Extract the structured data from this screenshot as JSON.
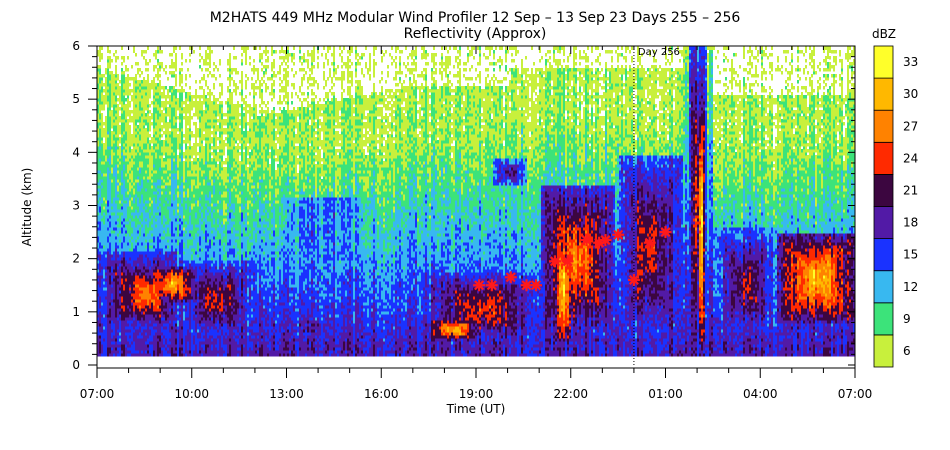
{
  "chart_data": {
    "type": "heatmap",
    "title": "M2HATS 449 MHz Modular Wind Profiler  12 Sep – 13 Sep 23 Days 255 – 256",
    "subtitle": "Reflectivity (Approx)",
    "xlabel": "Time (UT)",
    "ylabel": "Altitude (km)",
    "x_ticks": [
      "07:00",
      "10:00",
      "13:00",
      "16:00",
      "19:00",
      "22:00",
      "01:00",
      "04:00",
      "07:00"
    ],
    "x_range_hours": [
      7,
      31
    ],
    "y_ticks": [
      "0",
      "1",
      "2",
      "3",
      "4",
      "5",
      "6"
    ],
    "ylim": [
      0,
      6
    ],
    "grid": false,
    "colorbar": {
      "label": "dBZ",
      "tick_labels": [
        "6",
        "9",
        "12",
        "15",
        "18",
        "21",
        "24",
        "27",
        "30",
        "33"
      ],
      "levels": [
        6,
        9,
        12,
        15,
        18,
        21,
        24,
        27,
        30,
        33,
        36
      ],
      "colors": [
        "#c8f03c",
        "#3ce37a",
        "#38b8f0",
        "#1a32ff",
        "#521aa6",
        "#3c0640",
        "#ff2a00",
        "#ff8200",
        "#ffb800",
        "#ffff2a"
      ]
    },
    "annotations": [
      {
        "text": "Day 256",
        "x_hour": 24.0
      }
    ],
    "marker_series": {
      "color": "#ff1a1a",
      "points": [
        {
          "x_hour": 19.1,
          "y": 1.5
        },
        {
          "x_hour": 19.5,
          "y": 1.5
        },
        {
          "x_hour": 20.1,
          "y": 1.65
        },
        {
          "x_hour": 20.6,
          "y": 1.5
        },
        {
          "x_hour": 20.9,
          "y": 1.5
        },
        {
          "x_hour": 21.5,
          "y": 1.95
        },
        {
          "x_hour": 21.9,
          "y": 1.95
        },
        {
          "x_hour": 22.5,
          "y": 2.35
        },
        {
          "x_hour": 22.9,
          "y": 2.3
        },
        {
          "x_hour": 23.1,
          "y": 2.35
        },
        {
          "x_hour": 23.5,
          "y": 2.45
        },
        {
          "x_hour": 24.0,
          "y": 1.6
        },
        {
          "x_hour": 24.5,
          "y": 2.3
        },
        {
          "x_hour": 25.0,
          "y": 2.5
        }
      ]
    },
    "field_features": [
      {
        "t0": 7.0,
        "t1": 9.5,
        "z0": 0.6,
        "z1": 2.2,
        "dbz": 22
      },
      {
        "t0": 7.6,
        "t1": 9.4,
        "z0": 0.8,
        "z1": 1.9,
        "dbz": 26
      },
      {
        "t0": 9.5,
        "t1": 12.0,
        "z0": 0.5,
        "z1": 2.0,
        "dbz": 21
      },
      {
        "t0": 8.6,
        "t1": 10.2,
        "z0": 1.2,
        "z1": 1.9,
        "dbz": 27
      },
      {
        "t0": 12.0,
        "t1": 15.5,
        "z0": 0.3,
        "z1": 1.2,
        "dbz": 16
      },
      {
        "t0": 17.2,
        "t1": 21.2,
        "z0": 0.4,
        "z1": 1.8,
        "dbz": 22
      },
      {
        "t0": 17.5,
        "t1": 19.0,
        "z0": 0.5,
        "z1": 0.9,
        "dbz": 28
      },
      {
        "t0": 19.5,
        "t1": 20.6,
        "z0": 3.4,
        "z1": 3.9,
        "dbz": 18
      },
      {
        "t0": 21.0,
        "t1": 23.4,
        "z0": 0.6,
        "z1": 3.4,
        "dbz": 25
      },
      {
        "t0": 21.5,
        "t1": 22.0,
        "z0": 0.5,
        "z1": 2.4,
        "dbz": 30
      },
      {
        "t0": 23.5,
        "t1": 25.5,
        "z0": 0.4,
        "z1": 4.0,
        "dbz": 22
      },
      {
        "t0": 25.7,
        "t1": 26.3,
        "z0": 0.2,
        "z1": 6.0,
        "dbz": 22
      },
      {
        "t0": 26.0,
        "t1": 26.2,
        "z0": 0.4,
        "z1": 4.8,
        "dbz": 30
      },
      {
        "t0": 26.5,
        "t1": 28.5,
        "z0": 0.5,
        "z1": 2.6,
        "dbz": 20
      },
      {
        "t0": 28.5,
        "t1": 31.0,
        "z0": 0.8,
        "z1": 2.5,
        "dbz": 28
      }
    ]
  }
}
